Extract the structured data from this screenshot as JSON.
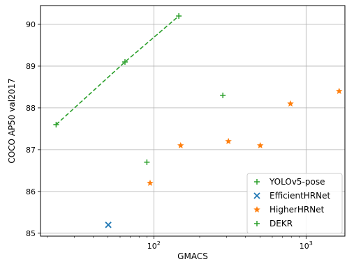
{
  "chart_data": {
    "type": "scatter",
    "xlabel": "GMACS",
    "ylabel": "COCO AP50 val2017",
    "xscale": "log",
    "xlim": [
      18,
      1800
    ],
    "ylim": [
      84.93,
      90.45
    ],
    "yticks": [
      85,
      86,
      87,
      88,
      89,
      90
    ],
    "xticks": [
      {
        "value": 100,
        "base": "10",
        "exp": "2"
      },
      {
        "value": 1000,
        "base": "10",
        "exp": "3"
      }
    ],
    "grid": true,
    "legend_position": "lower-right",
    "series": [
      {
        "name": "YOLOv5-pose",
        "marker": "+",
        "color": "#2ca02c",
        "connected": true,
        "linestyle": "dashed",
        "points": [
          {
            "x": 22.8,
            "y": 87.6
          },
          {
            "x": 64.6,
            "y": 89.1
          },
          {
            "x": 145.9,
            "y": 90.2
          }
        ]
      },
      {
        "name": "EfficientHRNet",
        "marker": "x",
        "color": "#1f77b4",
        "connected": false,
        "points": [
          {
            "x": 50.2,
            "y": 85.2
          }
        ]
      },
      {
        "name": "HigherHRNet",
        "marker": "*",
        "color": "#ff7f0e",
        "connected": false,
        "points": [
          {
            "x": 94.5,
            "y": 86.2
          },
          {
            "x": 150,
            "y": 87.1
          },
          {
            "x": 309,
            "y": 87.2
          },
          {
            "x": 500,
            "y": 87.1
          },
          {
            "x": 790,
            "y": 88.1
          },
          {
            "x": 1650,
            "y": 88.4
          }
        ]
      },
      {
        "name": "DEKR",
        "marker": "+",
        "color": "#2ca02c",
        "connected": false,
        "points": [
          {
            "x": 90,
            "y": 86.7
          },
          {
            "x": 284,
            "y": 88.3
          }
        ]
      }
    ]
  }
}
